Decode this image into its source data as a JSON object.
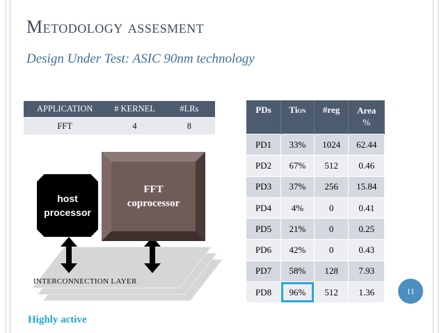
{
  "slide": {
    "title": "Metodology assesment",
    "subtitle": "Design Under Test: ASIC 90nm technology",
    "footer_note": "Highly active",
    "page_number": "11"
  },
  "app_table": {
    "headers": [
      "APPLICATION",
      "# KERNEL",
      "#LRs"
    ],
    "row": [
      "FFT",
      "4",
      "8"
    ]
  },
  "pd_table": {
    "headers": {
      "pds": "PDs",
      "ti": "Ti",
      "ti_sub": "ON",
      "reg": "#reg",
      "area": "Area",
      "area_unit": "%"
    },
    "rows": [
      [
        "PD1",
        "33%",
        "1024",
        "62.44"
      ],
      [
        "PD2",
        "67%",
        "512",
        "0.46"
      ],
      [
        "PD3",
        "37%",
        "256",
        "15.84"
      ],
      [
        "PD4",
        "4%",
        "0",
        "0.41"
      ],
      [
        "PD5",
        "21%",
        "0",
        "0.25"
      ],
      [
        "PD6",
        "42%",
        "0",
        "0.43"
      ],
      [
        "PD7",
        "58%",
        "128",
        "7.93"
      ],
      [
        "PD8",
        "96%",
        "512",
        "1.36"
      ]
    ]
  },
  "diagram": {
    "host_line1": "host",
    "host_line2": "processor",
    "fft_line1": "FFT",
    "fft_line2": "coprocessor",
    "interconnect_label": "INTERCONNECTION LAYER"
  },
  "colors": {
    "header_bg": "#4d5b6e",
    "highlight": "#2aa3d8",
    "page_badge": "#4a8ec2",
    "note_text": "#23a5c8"
  }
}
